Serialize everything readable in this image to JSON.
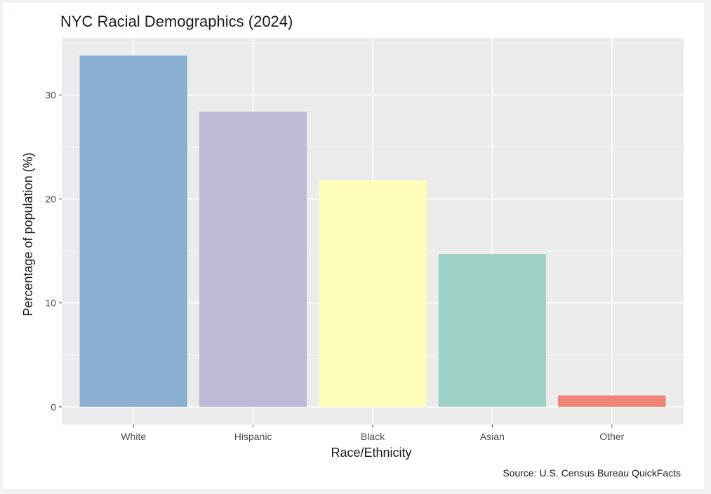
{
  "chart_data": {
    "type": "bar",
    "title": "NYC Racial Demographics (2024)",
    "xlabel": "Race/Ethnicity",
    "ylabel": "Percentage of population (%)",
    "caption": "Source: U.S. Census Bureau QuickFacts",
    "categories": [
      "White",
      "Hispanic",
      "Black",
      "Asian",
      "Other"
    ],
    "values": [
      33.8,
      28.4,
      21.8,
      14.7,
      1.1
    ],
    "colors": [
      "#8aafd0",
      "#bdbad8",
      "#fefeb9",
      "#9ed0c6",
      "#ec8576"
    ],
    "ylim": [
      -1.7,
      35.5
    ],
    "yticks": [
      0,
      10,
      20,
      30
    ],
    "ytick_labels": [
      "0",
      "10",
      "20",
      "30"
    ],
    "grid": true,
    "panel_background": "#ebebeb",
    "grid_color": "#ffffff"
  }
}
